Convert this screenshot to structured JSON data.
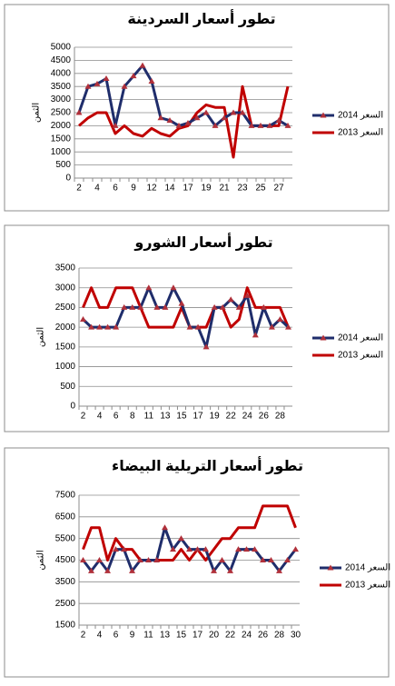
{
  "chart_data": [
    {
      "type": "line",
      "title": "تطور أسعار السردينة",
      "ylabel": "الثمن",
      "categories": [
        "2",
        null,
        "4",
        null,
        "6",
        null,
        "9",
        null,
        "12",
        null,
        "14",
        null,
        "17",
        null,
        "19",
        null,
        "21",
        null,
        "23",
        null,
        "25",
        null,
        "27",
        null
      ],
      "series": [
        {
          "name": "2014 السعر",
          "color": "#1f2d6b",
          "marker_color": "#b0303a",
          "values": [
            2500,
            3500,
            3600,
            3800,
            2000,
            3500,
            3900,
            4300,
            3700,
            2300,
            2200,
            2000,
            2100,
            2300,
            2500,
            2000,
            2300,
            2500,
            2500,
            2000,
            2000,
            2000,
            2200,
            2000
          ]
        },
        {
          "name": "2013 السعر",
          "color": "#c00000",
          "values": [
            2000,
            2300,
            2500,
            2500,
            1700,
            2000,
            1700,
            1600,
            1900,
            1700,
            1600,
            1900,
            2000,
            2500,
            2800,
            2700,
            2700,
            800,
            3500,
            2000,
            2000,
            2000,
            2000,
            3500
          ]
        }
      ],
      "ylim": [
        0,
        5000
      ],
      "yticks": [
        0,
        500,
        1000,
        1500,
        2000,
        2500,
        3000,
        3500,
        4000,
        4500,
        5000
      ],
      "grid": true,
      "legend": "right"
    },
    {
      "type": "line",
      "title": "تطور أسعار الشورو",
      "ylabel": "الثمن",
      "categories": [
        "2",
        null,
        "4",
        null,
        "6",
        null,
        "8",
        null,
        "11",
        null,
        "13",
        null,
        "15",
        null,
        "17",
        null,
        "19",
        null,
        "22",
        null,
        "24",
        null,
        "26",
        null,
        "28",
        null
      ],
      "series": [
        {
          "name": "2014 السعر",
          "color": "#1f2d6b",
          "marker_color": "#b0303a",
          "values": [
            2200,
            2000,
            2000,
            2000,
            2000,
            2500,
            2500,
            2500,
            3000,
            2500,
            2500,
            3000,
            2600,
            2000,
            2000,
            1500,
            2500,
            2500,
            2700,
            2500,
            2800,
            1800,
            2500,
            2000,
            2200,
            2000
          ]
        },
        {
          "name": "2013 السعر",
          "color": "#c00000",
          "values": [
            2500,
            3000,
            2500,
            2500,
            3000,
            3000,
            3000,
            2500,
            2000,
            2000,
            2000,
            2000,
            2500,
            2000,
            2000,
            2000,
            2500,
            2500,
            2000,
            2200,
            3000,
            2500,
            2500,
            2500,
            2500,
            2000
          ]
        }
      ],
      "ylim": [
        0,
        3500
      ],
      "yticks": [
        0,
        500,
        1000,
        1500,
        2000,
        2500,
        3000,
        3500
      ],
      "grid": true,
      "legend": "right"
    },
    {
      "type": "line",
      "title": "تطور أسعار التريلية البيضاء",
      "ylabel": "الثمن",
      "categories": [
        "2",
        null,
        "4",
        null,
        "6",
        null,
        "9",
        null,
        "11",
        null,
        "13",
        null,
        "15",
        null,
        "17",
        null,
        "20",
        null,
        "22",
        null,
        "24",
        null,
        "26",
        null,
        "28",
        null,
        "30"
      ],
      "series": [
        {
          "name": "2014 السعر",
          "color": "#1f2d6b",
          "marker_color": "#b0303a",
          "values": [
            4500,
            4000,
            4500,
            4000,
            5000,
            5000,
            4000,
            4500,
            4500,
            4500,
            6000,
            5000,
            5500,
            5000,
            5000,
            5000,
            4000,
            4500,
            4000,
            5000,
            5000,
            5000,
            4500,
            4500,
            4000,
            4500,
            5000
          ]
        },
        {
          "name": "2013 السعر",
          "color": "#c00000",
          "values": [
            5000,
            6000,
            6000,
            4500,
            5500,
            5000,
            5000,
            4500,
            4500,
            4500,
            4500,
            4500,
            5000,
            4500,
            5000,
            4500,
            5000,
            5500,
            5500,
            6000,
            6000,
            6000,
            7000,
            7000,
            7000,
            7000,
            6000
          ]
        }
      ],
      "ylim": [
        1500,
        7500
      ],
      "yticks": [
        1500,
        2500,
        3500,
        4500,
        5500,
        6500,
        7500
      ],
      "grid": true,
      "legend": "right"
    }
  ]
}
